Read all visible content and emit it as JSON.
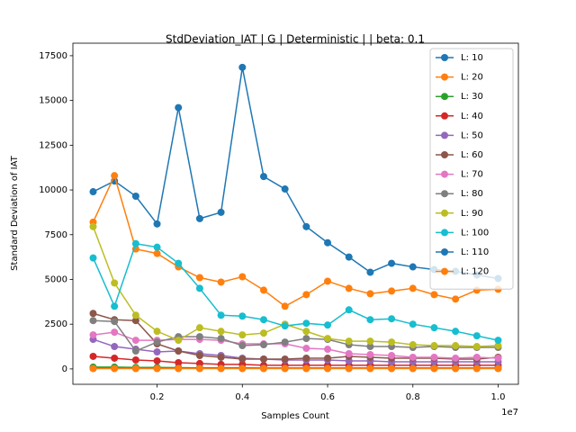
{
  "chart_data": {
    "type": "line",
    "title": "StdDeviation_IAT  | G | Deterministic |  | beta: 0.1",
    "x_label": "Samples Count",
    "y_label": "Standard Deviation of IAT",
    "x_offset_label": "1e7",
    "x": [
      500000,
      1000000,
      1500000,
      2000000,
      2500000,
      3000000,
      3500000,
      4000000,
      4500000,
      5000000,
      5500000,
      6000000,
      6500000,
      7000000,
      7500000,
      8000000,
      8500000,
      9000000,
      9500000,
      10000000
    ],
    "xlim": [
      25000,
      10475000
    ],
    "xticks": [
      {
        "value": 2000000,
        "label": "0.2"
      },
      {
        "value": 4000000,
        "label": "0.4"
      },
      {
        "value": 6000000,
        "label": "0.6"
      },
      {
        "value": 8000000,
        "label": "0.8"
      },
      {
        "value": 10000000,
        "label": "1.0"
      }
    ],
    "ylim": [
      -860,
      18200
    ],
    "yticks": [
      0,
      2500,
      5000,
      7500,
      10000,
      12500,
      15000,
      17500
    ],
    "legend_position": "upper-right",
    "series": [
      {
        "name": "L: 10",
        "color": "#1f77b4",
        "values": [
          9900,
          10500,
          9650,
          8100,
          14600,
          8400,
          8750,
          16850,
          10750,
          10050,
          7950,
          7050,
          6250,
          5400,
          5900,
          5700,
          5550,
          5450,
          5250,
          5050
        ]
      },
      {
        "name": "L: 20",
        "color": "#ff7f0e",
        "values": [
          8200,
          10800,
          6700,
          6450,
          5700,
          5100,
          4850,
          5150,
          4400,
          3500,
          4150,
          4900,
          4500,
          4200,
          4350,
          4500,
          4150,
          3900,
          4400,
          4450
        ]
      },
      {
        "name": "L: 30",
        "color": "#2ca02c",
        "values": [
          100,
          100,
          80,
          80,
          70,
          60,
          60,
          60,
          50,
          50,
          50,
          50,
          50,
          50,
          50,
          50,
          50,
          50,
          50,
          50
        ]
      },
      {
        "name": "L: 40",
        "color": "#d62728",
        "values": [
          700,
          600,
          500,
          450,
          350,
          300,
          250,
          250,
          200,
          200,
          200,
          200,
          200,
          200,
          200,
          200,
          200,
          200,
          200,
          200
        ]
      },
      {
        "name": "L: 50",
        "color": "#9467bd",
        "values": [
          1650,
          1250,
          1100,
          950,
          1000,
          850,
          750,
          600,
          550,
          500,
          500,
          500,
          450,
          450,
          400,
          400,
          400,
          400,
          400,
          400
        ]
      },
      {
        "name": "L: 60",
        "color": "#8c564b",
        "values": [
          3100,
          2750,
          2700,
          1400,
          1000,
          750,
          650,
          550,
          550,
          550,
          600,
          600,
          700,
          650,
          600,
          600,
          600,
          550,
          550,
          650
        ]
      },
      {
        "name": "L: 70",
        "color": "#e377c2",
        "values": [
          1900,
          2050,
          1600,
          1600,
          1650,
          1650,
          1600,
          1400,
          1400,
          1400,
          1150,
          1100,
          850,
          800,
          750,
          650,
          650,
          600,
          650,
          600
        ]
      },
      {
        "name": "L: 80",
        "color": "#7f7f7f",
        "values": [
          2700,
          2650,
          1000,
          1500,
          1800,
          1800,
          1700,
          1300,
          1350,
          1500,
          1700,
          1650,
          1350,
          1250,
          1250,
          1200,
          1250,
          1200,
          1200,
          1200
        ]
      },
      {
        "name": "L: 90",
        "color": "#bcbd22",
        "values": [
          7950,
          4800,
          3000,
          2100,
          1600,
          2300,
          2100,
          1900,
          2000,
          2500,
          2100,
          1700,
          1550,
          1550,
          1500,
          1350,
          1300,
          1300,
          1250,
          1300
        ]
      },
      {
        "name": "L: 100",
        "color": "#17becf",
        "values": [
          6200,
          3500,
          7000,
          6800,
          5900,
          4500,
          3000,
          2950,
          2750,
          2400,
          2550,
          2450,
          3300,
          2750,
          2800,
          2500,
          2300,
          2100,
          1850,
          1600
        ]
      },
      {
        "name": "L: 110",
        "color": "#1f77b4",
        "values": [
          30,
          30,
          30,
          30,
          30,
          30,
          30,
          30,
          30,
          30,
          30,
          30,
          30,
          30,
          30,
          30,
          30,
          30,
          30,
          30
        ]
      },
      {
        "name": "L: 120",
        "color": "#ff7f0e",
        "values": [
          20,
          20,
          20,
          20,
          20,
          20,
          20,
          20,
          20,
          20,
          20,
          20,
          20,
          20,
          20,
          20,
          20,
          20,
          20,
          20
        ]
      }
    ]
  }
}
